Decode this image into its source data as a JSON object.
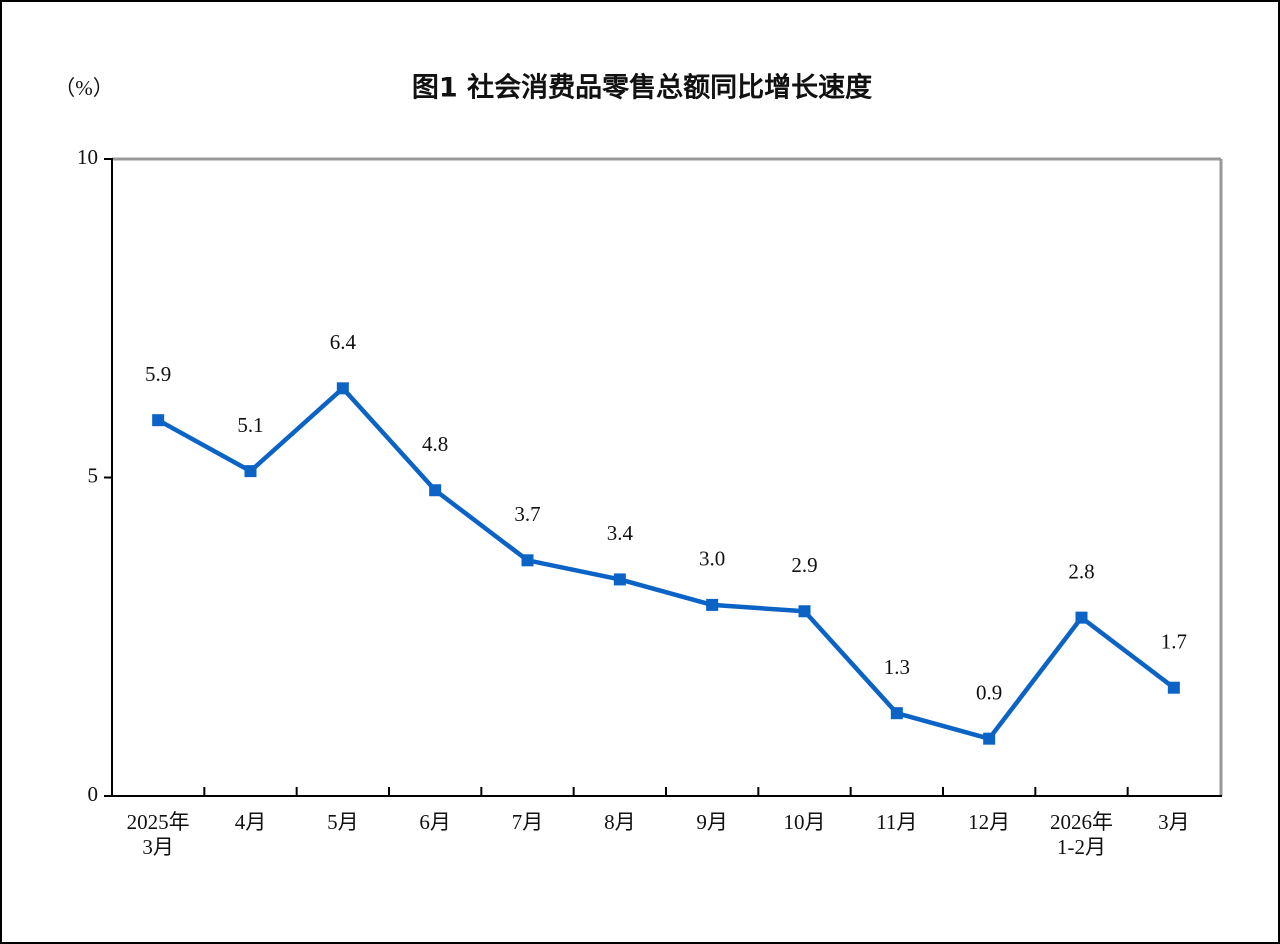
{
  "chart_data": {
    "type": "line",
    "title": "图1  社会消费品零售总额同比增长速度",
    "y_label": "（%）",
    "categories": [
      "2025年\n3月",
      "4月",
      "5月",
      "6月",
      "7月",
      "8月",
      "9月",
      "10月",
      "11月",
      "12月",
      "2026年\n1-2月",
      "3月"
    ],
    "values": [
      5.9,
      5.1,
      6.4,
      4.8,
      3.7,
      3.4,
      3.0,
      2.9,
      1.3,
      0.9,
      2.8,
      1.7
    ],
    "value_labels": [
      "5.9",
      "5.1",
      "6.4",
      "4.8",
      "3.7",
      "3.4",
      "3.0",
      "2.9",
      "1.3",
      "0.9",
      "2.8",
      "1.7"
    ],
    "color": "#0b63c5",
    "ylim": [
      0,
      10
    ],
    "yticks": [
      0,
      5,
      10
    ]
  }
}
